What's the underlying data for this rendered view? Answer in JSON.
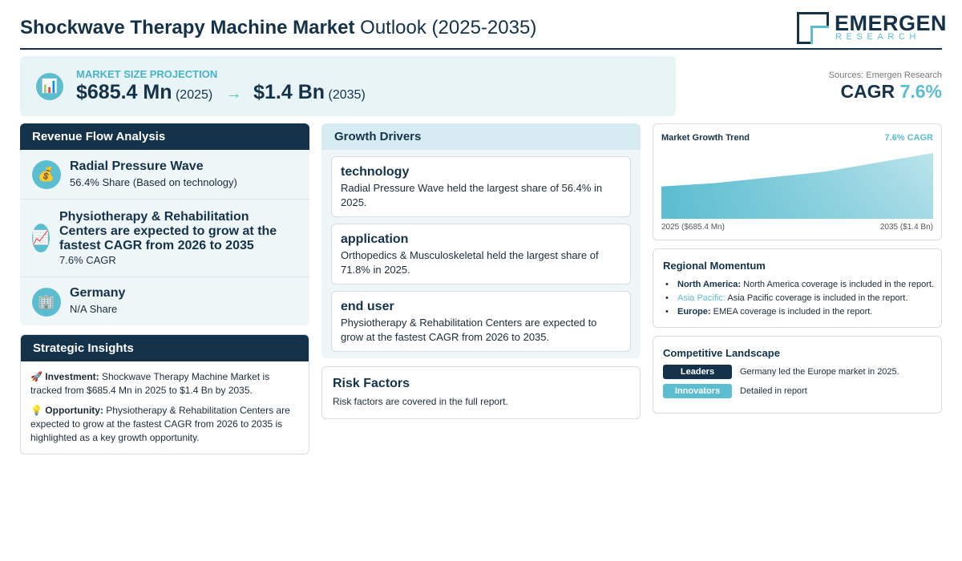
{
  "header": {
    "title_bold": "Shockwave Therapy Machine Market",
    "title_rest": " Outlook (2025-2035)",
    "logo_name": "EMERGEN",
    "logo_sub": "RESEARCH"
  },
  "projection": {
    "label": "MARKET SIZE PROJECTION",
    "start_value": "$685.4 Mn",
    "start_year": "(2025)",
    "arrow": "→",
    "end_value": "$1.4 Bn",
    "end_year": "(2035)",
    "icon": "bar-chart-icon"
  },
  "sources": "Sources: Emergen Research",
  "cagr": {
    "label": "CAGR ",
    "value": "7.6%"
  },
  "revenue_flow": {
    "heading": "Revenue Flow Analysis",
    "items": [
      {
        "icon": "money-bag-icon",
        "glyph": "💰",
        "title": "Radial Pressure Wave",
        "sub": "56.4% Share (Based on technology)"
      },
      {
        "icon": "trend-chart-icon",
        "glyph": "📈",
        "title": "Physiotherapy & Rehabilitation Centers are expected to grow at the fastest CAGR from 2026 to 2035",
        "sub": "7.6% CAGR"
      },
      {
        "icon": "building-icon",
        "glyph": "🏢",
        "title": "Germany",
        "sub": "N/A Share"
      }
    ]
  },
  "strategic": {
    "heading": "Strategic Insights",
    "investment_icon": "🚀",
    "investment_label": "Investment:",
    "investment_text": " Shockwave Therapy Machine Market is tracked from $685.4 Mn in 2025 to $1.4 Bn by 2035.",
    "opportunity_icon": "💡",
    "opportunity_label": "Opportunity:",
    "opportunity_text": " Physiotherapy & Rehabilitation Centers are expected to grow at the fastest CAGR from 2026 to 2035 is highlighted as a key growth opportunity."
  },
  "growth_drivers": {
    "heading": "Growth Drivers",
    "cards": [
      {
        "title": "technology",
        "text": "Radial Pressure Wave held the largest share of 56.4% in 2025."
      },
      {
        "title": "application",
        "text": "Orthopedics & Musculoskeletal held the largest share of 71.8% in 2025."
      },
      {
        "title": "end user",
        "text": "Physiotherapy & Rehabilitation Centers are expected to grow at the fastest CAGR from 2026 to 2035."
      }
    ]
  },
  "risk": {
    "title": "Risk Factors",
    "text": "Risk factors are covered in the full report."
  },
  "trend": {
    "title": "Market Growth Trend",
    "cagr": "7.6% CAGR",
    "start_label": "2025 ($685.4 Mn)",
    "end_label": "2035 ($1.4 Bn)"
  },
  "chart_data": {
    "type": "area",
    "x": [
      2025,
      2027,
      2031,
      2035
    ],
    "values": [
      685.4,
      760,
      1000,
      1400
    ],
    "ylim": [
      0,
      1500
    ],
    "grid": false,
    "color": "#5bbdd0"
  },
  "regional": {
    "title": "Regional Momentum",
    "items": [
      {
        "region": "North America:",
        "text": " North America coverage is included in the report.",
        "color": "#14324a"
      },
      {
        "region": "Asia Pacific:",
        "text": " Asia Pacific coverage is included in the report.",
        "color": "#5bbdd0"
      },
      {
        "region": "Europe:",
        "text": " EMEA coverage is included in the report.",
        "color": "#14324a"
      }
    ]
  },
  "competitive": {
    "title": "Competitive Landscape",
    "rows": [
      {
        "badge": "Leaders",
        "text": "Germany led the Europe market in 2025.",
        "color": "#14324a"
      },
      {
        "badge": "Innovators",
        "text": "Detailed in report",
        "color": "#5bbdd0"
      }
    ]
  },
  "colors": {
    "navy": "#14324a",
    "accent": "#5bbdd0",
    "panel": "#eef6f8"
  }
}
